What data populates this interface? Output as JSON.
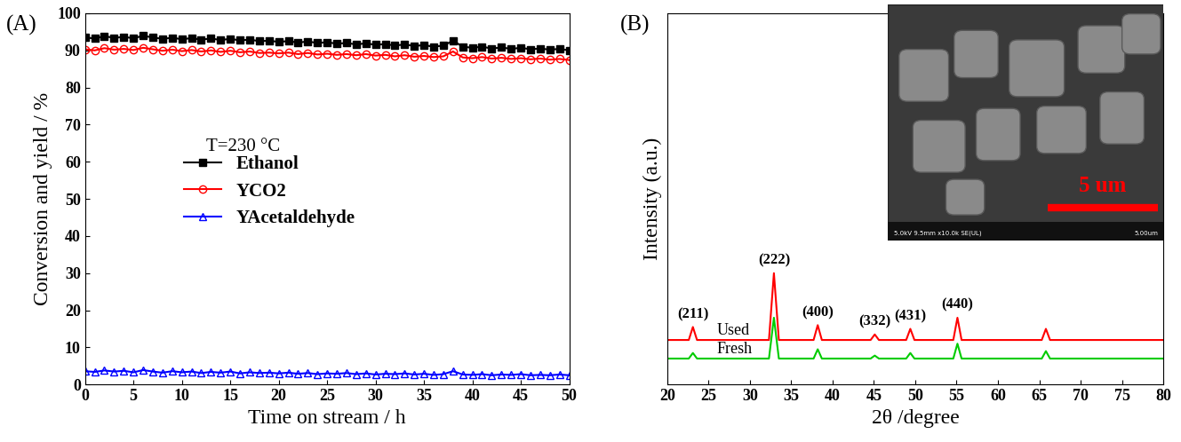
{
  "chart_data": [
    {
      "type": "line",
      "panel_label": "(A)",
      "x_label": "Time on stream / h",
      "y_label": "Conversion and yield / %",
      "annotations": [
        "T=230 °C"
      ],
      "legend": "center left",
      "grid": false,
      "xlim": [
        0,
        50
      ],
      "xticks": [
        0,
        5,
        10,
        15,
        20,
        25,
        30,
        35,
        40,
        45,
        50
      ],
      "ylim": [
        0,
        100
      ],
      "yticks": [
        0,
        10,
        20,
        30,
        40,
        50,
        60,
        70,
        80,
        90,
        100
      ],
      "x": [
        0,
        1,
        2,
        3,
        4,
        5,
        6,
        7,
        8,
        9,
        10,
        11,
        12,
        13,
        14,
        15,
        16,
        17,
        18,
        19,
        20,
        21,
        22,
        23,
        24,
        25,
        26,
        27,
        28,
        29,
        30,
        31,
        32,
        33,
        34,
        35,
        36,
        37,
        38,
        39,
        40,
        41,
        42,
        43,
        44,
        45,
        46,
        47,
        48,
        49,
        50
      ],
      "series": [
        {
          "name": "Ethanol",
          "color": "#000000",
          "marker": "square",
          "line_style": "solid",
          "values": [
            93.5,
            93.2,
            93.8,
            93.4,
            93.6,
            93.3,
            93.9,
            93.5,
            93.1,
            93.4,
            93.0,
            93.3,
            92.9,
            93.2,
            92.8,
            93.1,
            92.7,
            92.9,
            92.5,
            92.6,
            92.3,
            92.5,
            92.1,
            92.4,
            92.0,
            92.2,
            91.8,
            92.0,
            91.6,
            91.9,
            91.5,
            91.7,
            91.3,
            91.6,
            91.2,
            91.4,
            91.0,
            91.3,
            92.6,
            91.0,
            90.7,
            91.0,
            90.5,
            90.8,
            90.4,
            90.7,
            90.3,
            90.5,
            90.2,
            90.4,
            90.0
          ]
        },
        {
          "name": "YCO2",
          "color": "#ff0000",
          "marker": "circle",
          "line_style": "solid",
          "values": [
            90.3,
            90.0,
            90.6,
            90.2,
            90.4,
            90.1,
            90.7,
            90.3,
            89.9,
            90.2,
            89.8,
            90.1,
            89.7,
            90.0,
            89.6,
            89.9,
            89.5,
            89.7,
            89.3,
            89.4,
            89.2,
            89.4,
            89.0,
            89.3,
            88.9,
            89.1,
            88.8,
            89.0,
            88.7,
            89.0,
            88.6,
            88.8,
            88.4,
            88.7,
            88.3,
            88.5,
            88.2,
            88.4,
            89.7,
            88.1,
            87.9,
            88.2,
            87.8,
            88.0,
            87.7,
            87.9,
            87.6,
            87.8,
            87.5,
            87.7,
            87.4
          ]
        },
        {
          "name": "YAcetaldehyde",
          "color": "#0000ff",
          "marker": "triangle",
          "line_style": "solid",
          "values": [
            3.6,
            3.4,
            3.8,
            3.5,
            3.7,
            3.3,
            3.9,
            3.5,
            3.2,
            3.6,
            3.3,
            3.5,
            3.1,
            3.4,
            3.2,
            3.5,
            3.0,
            3.3,
            3.1,
            3.2,
            3.0,
            3.2,
            2.9,
            3.1,
            2.8,
            3.0,
            2.9,
            3.1,
            2.8,
            3.0,
            2.7,
            2.9,
            2.8,
            3.0,
            2.7,
            2.9,
            2.6,
            2.8,
            3.6,
            2.7,
            2.6,
            2.8,
            2.5,
            2.7,
            2.6,
            2.8,
            2.5,
            2.6,
            2.5,
            2.7,
            2.5
          ]
        }
      ]
    },
    {
      "type": "line",
      "panel_label": "(B)",
      "x_label": "2θ /degree",
      "y_label": "Intensity (a.u.)",
      "tick_labels": "x",
      "grid": false,
      "xlim": [
        20,
        80
      ],
      "xticks": [
        20,
        25,
        30,
        35,
        40,
        45,
        50,
        55,
        60,
        65,
        70,
        75,
        80
      ],
      "ylim": [
        0,
        100
      ],
      "x": [
        20,
        22.6,
        23.1,
        23.6,
        32.3,
        32.9,
        33.5,
        37.7,
        38.2,
        38.7,
        44.6,
        45.1,
        45.6,
        48.9,
        49.4,
        49.9,
        54.6,
        55.1,
        55.6,
        65.3,
        65.8,
        66.3,
        80
      ],
      "series": [
        {
          "name": "Used",
          "color": "#ff0000",
          "line_style": "solid",
          "values": [
            12,
            12,
            15.5,
            12,
            12,
            30,
            12,
            12,
            16,
            12,
            12,
            13.5,
            12,
            12,
            15,
            12,
            12,
            18,
            12,
            12,
            15,
            12,
            12
          ]
        },
        {
          "name": "Fresh",
          "color": "#00cc00",
          "line_style": "solid",
          "values": [
            7,
            7,
            8.5,
            7,
            7,
            18,
            7,
            7,
            9.5,
            7,
            7,
            7.8,
            7,
            7,
            8.5,
            7,
            7,
            11,
            7,
            7,
            9,
            7,
            7
          ]
        }
      ],
      "peak_labels": [
        {
          "x": 23.1,
          "label": "(211)"
        },
        {
          "x": 32.9,
          "label": "(222)"
        },
        {
          "x": 38.2,
          "label": "(400)"
        },
        {
          "x": 45.1,
          "label": "(332)"
        },
        {
          "x": 49.4,
          "label": "(431)"
        },
        {
          "x": 55.1,
          "label": "(440)"
        }
      ],
      "inset": {
        "scale_bar_label": "5 um",
        "info": "5.0kV 9.5mm x10.0k SE(UL)",
        "scale": "5.00um"
      }
    }
  ]
}
